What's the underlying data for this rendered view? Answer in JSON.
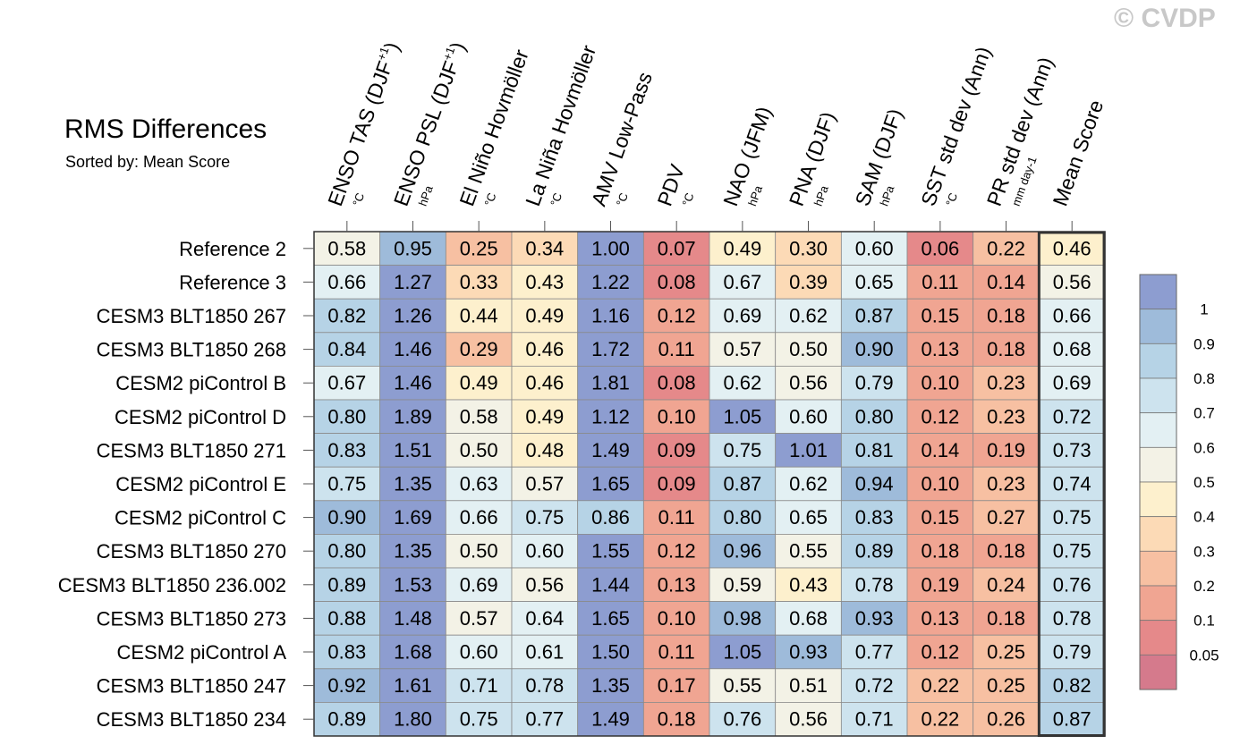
{
  "watermark": "© CVDP",
  "title": "RMS Differences",
  "subtitle": "Sorted by: Mean Score",
  "chart_data": {
    "type": "heatmap",
    "title": "RMS Differences",
    "sorted_by": "Sorted by: Mean Score",
    "columns": [
      {
        "name": "ENSO TAS (DJF+1)",
        "label": "ENSO TAS (DJF",
        "sup": "+1",
        "close": ")",
        "unit": "°C"
      },
      {
        "name": "ENSO PSL (DJF+1)",
        "label": "ENSO PSL (DJF",
        "sup": "+1",
        "close": ")",
        "unit": "hPa"
      },
      {
        "name": "El Niño Hovmöller",
        "label": "El Niño Hovmöller",
        "sup": "",
        "close": "",
        "unit": "°C"
      },
      {
        "name": "La Niña Hovmöller",
        "label": "La Niña Hovmöller",
        "sup": "",
        "close": "",
        "unit": "°C"
      },
      {
        "name": "AMV Low-Pass",
        "label": "AMV Low-Pass",
        "sup": "",
        "close": "",
        "unit": "°C"
      },
      {
        "name": "PDV",
        "label": "PDV",
        "sup": "",
        "close": "",
        "unit": "°C"
      },
      {
        "name": "NAO (JFM)",
        "label": "NAO (JFM)",
        "sup": "",
        "close": "",
        "unit": "hPa"
      },
      {
        "name": "PNA (DJF)",
        "label": "PNA (DJF)",
        "sup": "",
        "close": "",
        "unit": "hPa"
      },
      {
        "name": "SAM (DJF)",
        "label": "SAM (DJF)",
        "sup": "",
        "close": "",
        "unit": "hPa"
      },
      {
        "name": "SST std dev (Ann)",
        "label": "SST std dev (Ann)",
        "sup": "",
        "close": "",
        "unit": "°C"
      },
      {
        "name": "PR std dev (Ann)",
        "label": "PR std dev (Ann)",
        "sup": "",
        "close": "",
        "unit": "mm day-1"
      },
      {
        "name": "Mean Score",
        "label": "Mean Score",
        "sup": "",
        "close": "",
        "unit": ""
      }
    ],
    "rows": [
      "Reference 2",
      "Reference 3",
      "CESM3 BLT1850 267",
      "CESM3 BLT1850 268",
      "CESM2 piControl B",
      "CESM2 piControl D",
      "CESM3 BLT1850 271",
      "CESM2 piControl E",
      "CESM2 piControl C",
      "CESM3 BLT1850 270",
      "CESM3 BLT1850 236.002",
      "CESM3 BLT1850 273",
      "CESM2 piControl A",
      "CESM3 BLT1850 247",
      "CESM3 BLT1850 234"
    ],
    "values": [
      [
        "0.58",
        "0.95",
        "0.25",
        "0.34",
        "1.00",
        "0.07",
        "0.49",
        "0.30",
        "0.60",
        "0.06",
        "0.22",
        "0.46"
      ],
      [
        "0.66",
        "1.27",
        "0.33",
        "0.43",
        "1.22",
        "0.08",
        "0.67",
        "0.39",
        "0.65",
        "0.11",
        "0.14",
        "0.56"
      ],
      [
        "0.82",
        "1.26",
        "0.44",
        "0.49",
        "1.16",
        "0.12",
        "0.69",
        "0.62",
        "0.87",
        "0.15",
        "0.18",
        "0.66"
      ],
      [
        "0.84",
        "1.46",
        "0.29",
        "0.46",
        "1.72",
        "0.11",
        "0.57",
        "0.50",
        "0.90",
        "0.13",
        "0.18",
        "0.68"
      ],
      [
        "0.67",
        "1.46",
        "0.49",
        "0.46",
        "1.81",
        "0.08",
        "0.62",
        "0.56",
        "0.79",
        "0.10",
        "0.23",
        "0.69"
      ],
      [
        "0.80",
        "1.89",
        "0.58",
        "0.49",
        "1.12",
        "0.10",
        "1.05",
        "0.60",
        "0.80",
        "0.12",
        "0.23",
        "0.72"
      ],
      [
        "0.83",
        "1.51",
        "0.50",
        "0.48",
        "1.49",
        "0.09",
        "0.75",
        "1.01",
        "0.81",
        "0.14",
        "0.19",
        "0.73"
      ],
      [
        "0.75",
        "1.35",
        "0.63",
        "0.57",
        "1.65",
        "0.09",
        "0.87",
        "0.62",
        "0.94",
        "0.10",
        "0.23",
        "0.74"
      ],
      [
        "0.90",
        "1.69",
        "0.66",
        "0.75",
        "0.86",
        "0.11",
        "0.80",
        "0.65",
        "0.83",
        "0.15",
        "0.27",
        "0.75"
      ],
      [
        "0.80",
        "1.35",
        "0.50",
        "0.60",
        "1.55",
        "0.12",
        "0.96",
        "0.55",
        "0.89",
        "0.18",
        "0.18",
        "0.75"
      ],
      [
        "0.89",
        "1.53",
        "0.69",
        "0.56",
        "1.44",
        "0.13",
        "0.59",
        "0.43",
        "0.78",
        "0.19",
        "0.24",
        "0.76"
      ],
      [
        "0.88",
        "1.48",
        "0.57",
        "0.64",
        "1.65",
        "0.10",
        "0.98",
        "0.68",
        "0.93",
        "0.13",
        "0.18",
        "0.78"
      ],
      [
        "0.83",
        "1.68",
        "0.60",
        "0.61",
        "1.50",
        "0.11",
        "1.05",
        "0.93",
        "0.77",
        "0.12",
        "0.25",
        "0.79"
      ],
      [
        "0.92",
        "1.61",
        "0.71",
        "0.78",
        "1.35",
        "0.17",
        "0.55",
        "0.51",
        "0.72",
        "0.22",
        "0.25",
        "0.82"
      ],
      [
        "0.89",
        "1.80",
        "0.75",
        "0.77",
        "1.49",
        "0.18",
        "0.76",
        "0.56",
        "0.71",
        "0.22",
        "0.26",
        "0.87"
      ]
    ],
    "colorbar": {
      "levels": [
        0.05,
        0.1,
        0.2,
        0.3,
        0.4,
        0.5,
        0.6,
        0.7,
        0.8,
        0.9,
        1
      ],
      "labels": [
        "0.05",
        "0.1",
        "0.2",
        "0.3",
        "0.4",
        "0.5",
        "0.6",
        "0.7",
        "0.8",
        "0.9",
        "1"
      ],
      "colors": [
        "#d57a8c",
        "#e5898a",
        "#f0a592",
        "#f7c0a2",
        "#fcdab6",
        "#fdf0cd",
        "#f3f2e6",
        "#e3f0f3",
        "#cde3ee",
        "#b6d3e6",
        "#9ebbda",
        "#8d9dd0"
      ]
    }
  }
}
